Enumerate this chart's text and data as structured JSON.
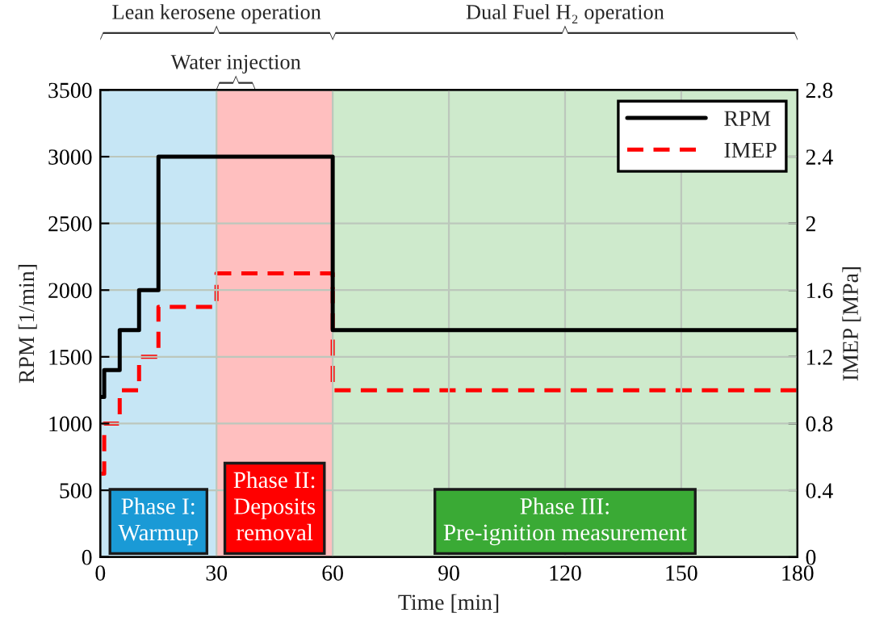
{
  "chart_data": {
    "type": "step",
    "xlabel": "Time [min]",
    "ylabel": "RPM [1/min]",
    "y2label": "IMEP [MPa]",
    "xlim": [
      0,
      180
    ],
    "xticks": [
      0,
      30,
      60,
      90,
      120,
      150,
      180
    ],
    "ylim": [
      0,
      3500
    ],
    "yticks": [
      0,
      500,
      1000,
      1500,
      2000,
      2500,
      3000,
      3500
    ],
    "y2lim": [
      0,
      2.8
    ],
    "y2ticks": [
      0,
      0.4,
      0.8,
      1.2,
      1.6,
      2,
      2.4,
      2.8
    ],
    "grid": true,
    "legend": "top right",
    "series": [
      {
        "name": "RPM",
        "color": "#000000",
        "line_style": "solid",
        "x": [
          0,
          1,
          5,
          10,
          15,
          60,
          180
        ],
        "values": [
          1200,
          1400,
          1700,
          2000,
          3000,
          1700,
          1700
        ]
      },
      {
        "name": "IMEP",
        "color": "#ff0000",
        "line_style": "dashed",
        "axis": "y2",
        "x": [
          0,
          1,
          5,
          10,
          15,
          30,
          60,
          180
        ],
        "values": [
          0.5,
          0.8,
          1.0,
          1.2,
          1.5,
          1.7,
          1.0,
          1.0
        ]
      }
    ],
    "bands": [
      {
        "axis": "x",
        "from": 0,
        "to": 30,
        "label": "Phase I:\nWarmup",
        "color": "#1a9ad6"
      },
      {
        "axis": "x",
        "from": 30,
        "to": 60,
        "label": "Phase II:\nDeposits\nremoval",
        "color": "#ff0000"
      },
      {
        "axis": "x",
        "from": 60,
        "to": 180,
        "label": "Phase III:\nPre-ignition measurement",
        "color": "#3aaa35"
      }
    ],
    "annotations": [
      "Lean kerosene operation",
      "Dual Fuel H₂ operation",
      "Water injection"
    ]
  }
}
